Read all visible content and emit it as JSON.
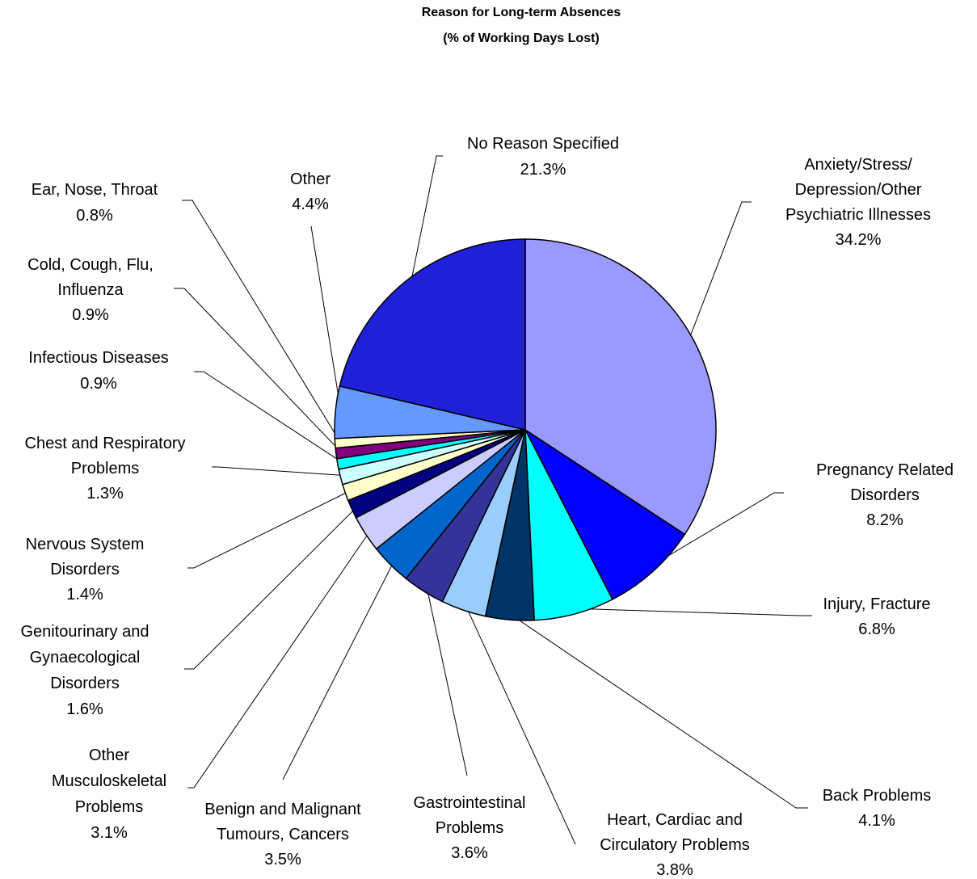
{
  "chart_data": {
    "type": "pie",
    "title": "Reason for Long-term Absences",
    "subtitle": "(% of Working Days Lost)",
    "categories": [
      "Anxiety/Stress/\nDepression/Other\nPsychiatric Illnesses",
      "Pregnancy Related\nDisorders",
      "Injury, Fracture",
      "Back Problems",
      "Heart, Cardiac and\nCirculatory Problems",
      "Gastrointestinal\nProblems",
      "Benign and Malignant\nTumours, Cancers",
      "Other\nMusculoskeletal\nProblems",
      "Genitourinary and\nGynaecological\nDisorders",
      "Nervous System\nDisorders",
      "Chest and Respiratory\nProblems",
      "Infectious Diseases",
      "Cold, Cough, Flu,\nInfluenza",
      "Ear, Nose, Throat",
      "Other",
      "No Reason Specified"
    ],
    "values": [
      34.2,
      8.2,
      6.8,
      4.1,
      3.8,
      3.6,
      3.5,
      3.1,
      1.6,
      1.4,
      1.3,
      0.9,
      0.9,
      0.8,
      4.4,
      21.3
    ],
    "value_labels": [
      "34.2%",
      "8.2%",
      "6.8%",
      "4.1%",
      "3.8%",
      "3.6%",
      "3.5%",
      "3.1%",
      "1.6%",
      "1.4%",
      "1.3%",
      "0.9%",
      "0.9%",
      "0.8%",
      "4.4%",
      "21.3%"
    ],
    "colors": [
      "#9999ff",
      "#0000ff",
      "#00ffff",
      "#003366",
      "#99ccff",
      "#333399",
      "#0066cc",
      "#ccccff",
      "#000080",
      "#ffffcc",
      "#ccffff",
      "#00ffff",
      "#800080",
      "#ffffcc",
      "#6699ff",
      "#2020d8"
    ]
  }
}
